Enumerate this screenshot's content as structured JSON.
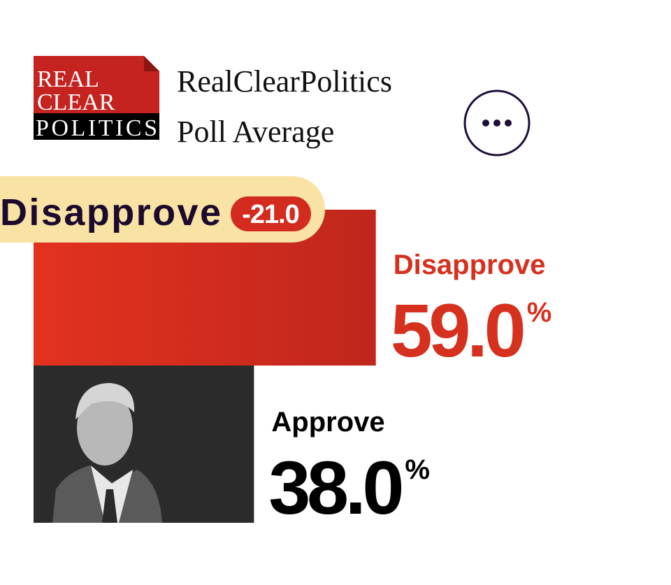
{
  "logo": {
    "lines": [
      "REAL",
      "CLEAR",
      "POLITICS"
    ]
  },
  "header": {
    "title": "RealClearPolitics",
    "subtitle": "Poll Average"
  },
  "verdict": {
    "label": "Disapprove",
    "margin": {
      "value": -21,
      "label": "-21.0"
    }
  },
  "chart_data": {
    "type": "bar",
    "categories": [
      "Disapprove",
      "Approve"
    ],
    "values": [
      59,
      38
    ],
    "value_labels": [
      "59.0",
      "38.0"
    ],
    "unit": "%",
    "colors": [
      "#d9301f",
      "#2b2b2b"
    ]
  }
}
